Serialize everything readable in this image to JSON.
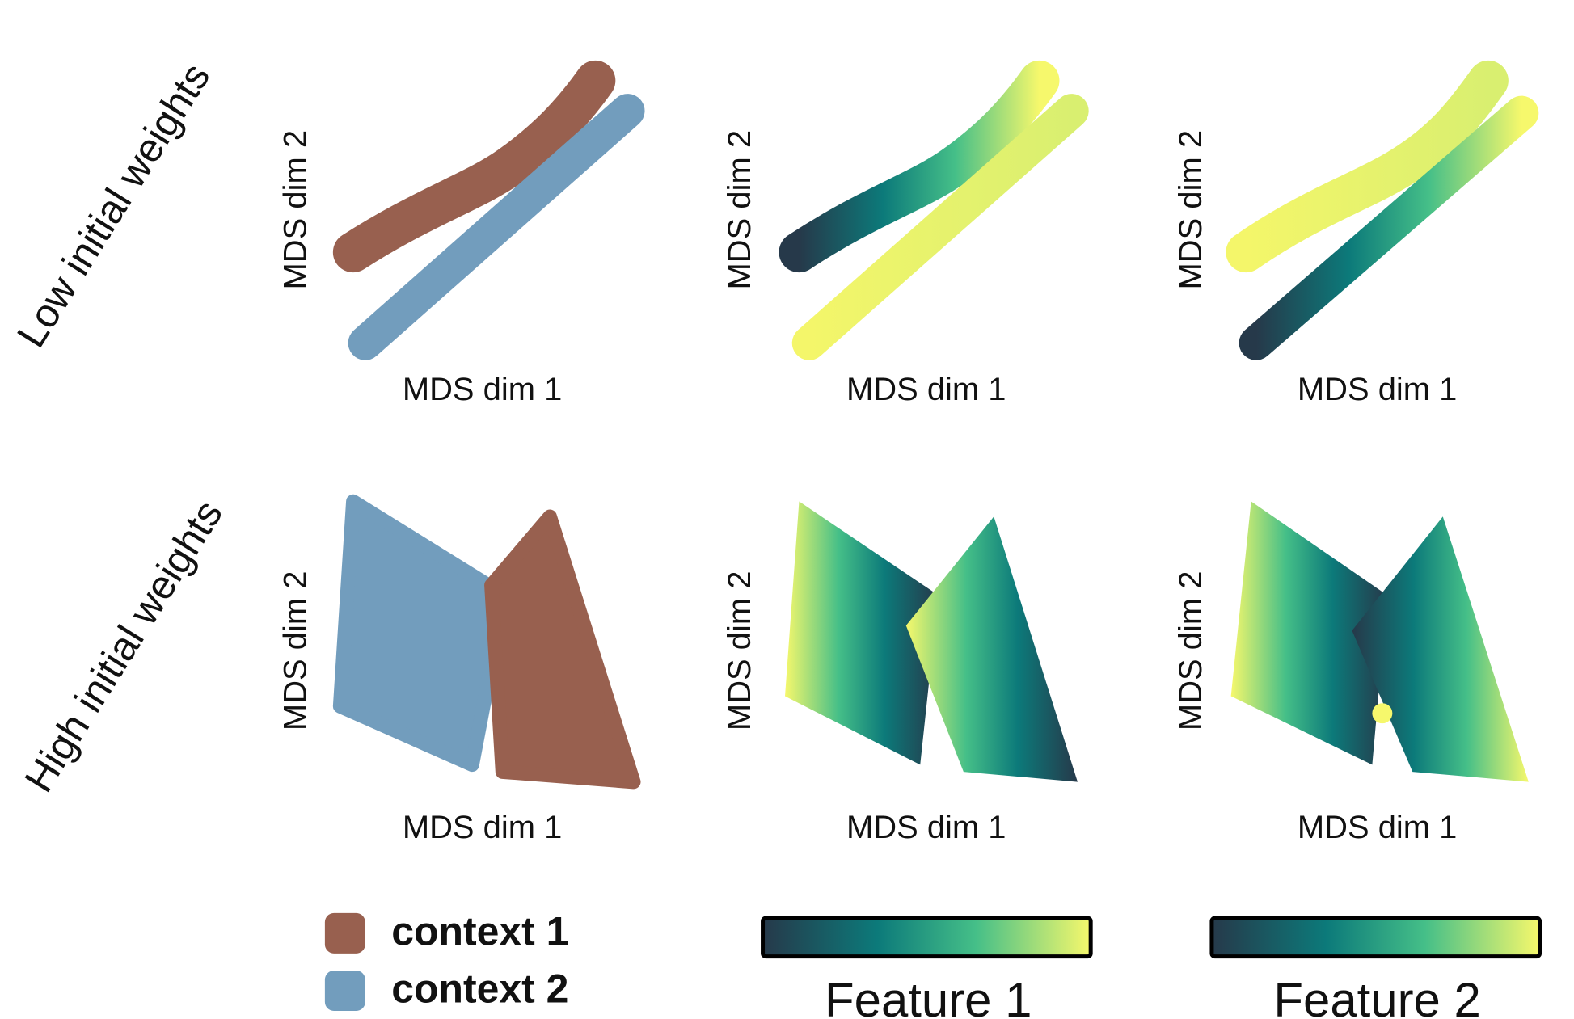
{
  "row_labels": [
    "Low initial weights",
    "High initial weights"
  ],
  "panels": [
    {
      "xlabel": "MDS dim 1",
      "ylabel": "MDS dim 2"
    },
    {
      "xlabel": "MDS dim 1",
      "ylabel": "MDS dim 2"
    },
    {
      "xlabel": "MDS dim 1",
      "ylabel": "MDS dim 2"
    },
    {
      "xlabel": "MDS dim 1",
      "ylabel": "MDS dim 2"
    },
    {
      "xlabel": "MDS dim 1",
      "ylabel": "MDS dim 2"
    },
    {
      "xlabel": "MDS dim 1",
      "ylabel": "MDS dim 2"
    }
  ],
  "legend": [
    {
      "label": "context 1",
      "color": "#98604f"
    },
    {
      "label": "context 2",
      "color": "#729dbd"
    }
  ],
  "colorbars": [
    {
      "label": "Feature 1"
    },
    {
      "label": "Feature 2"
    }
  ]
}
